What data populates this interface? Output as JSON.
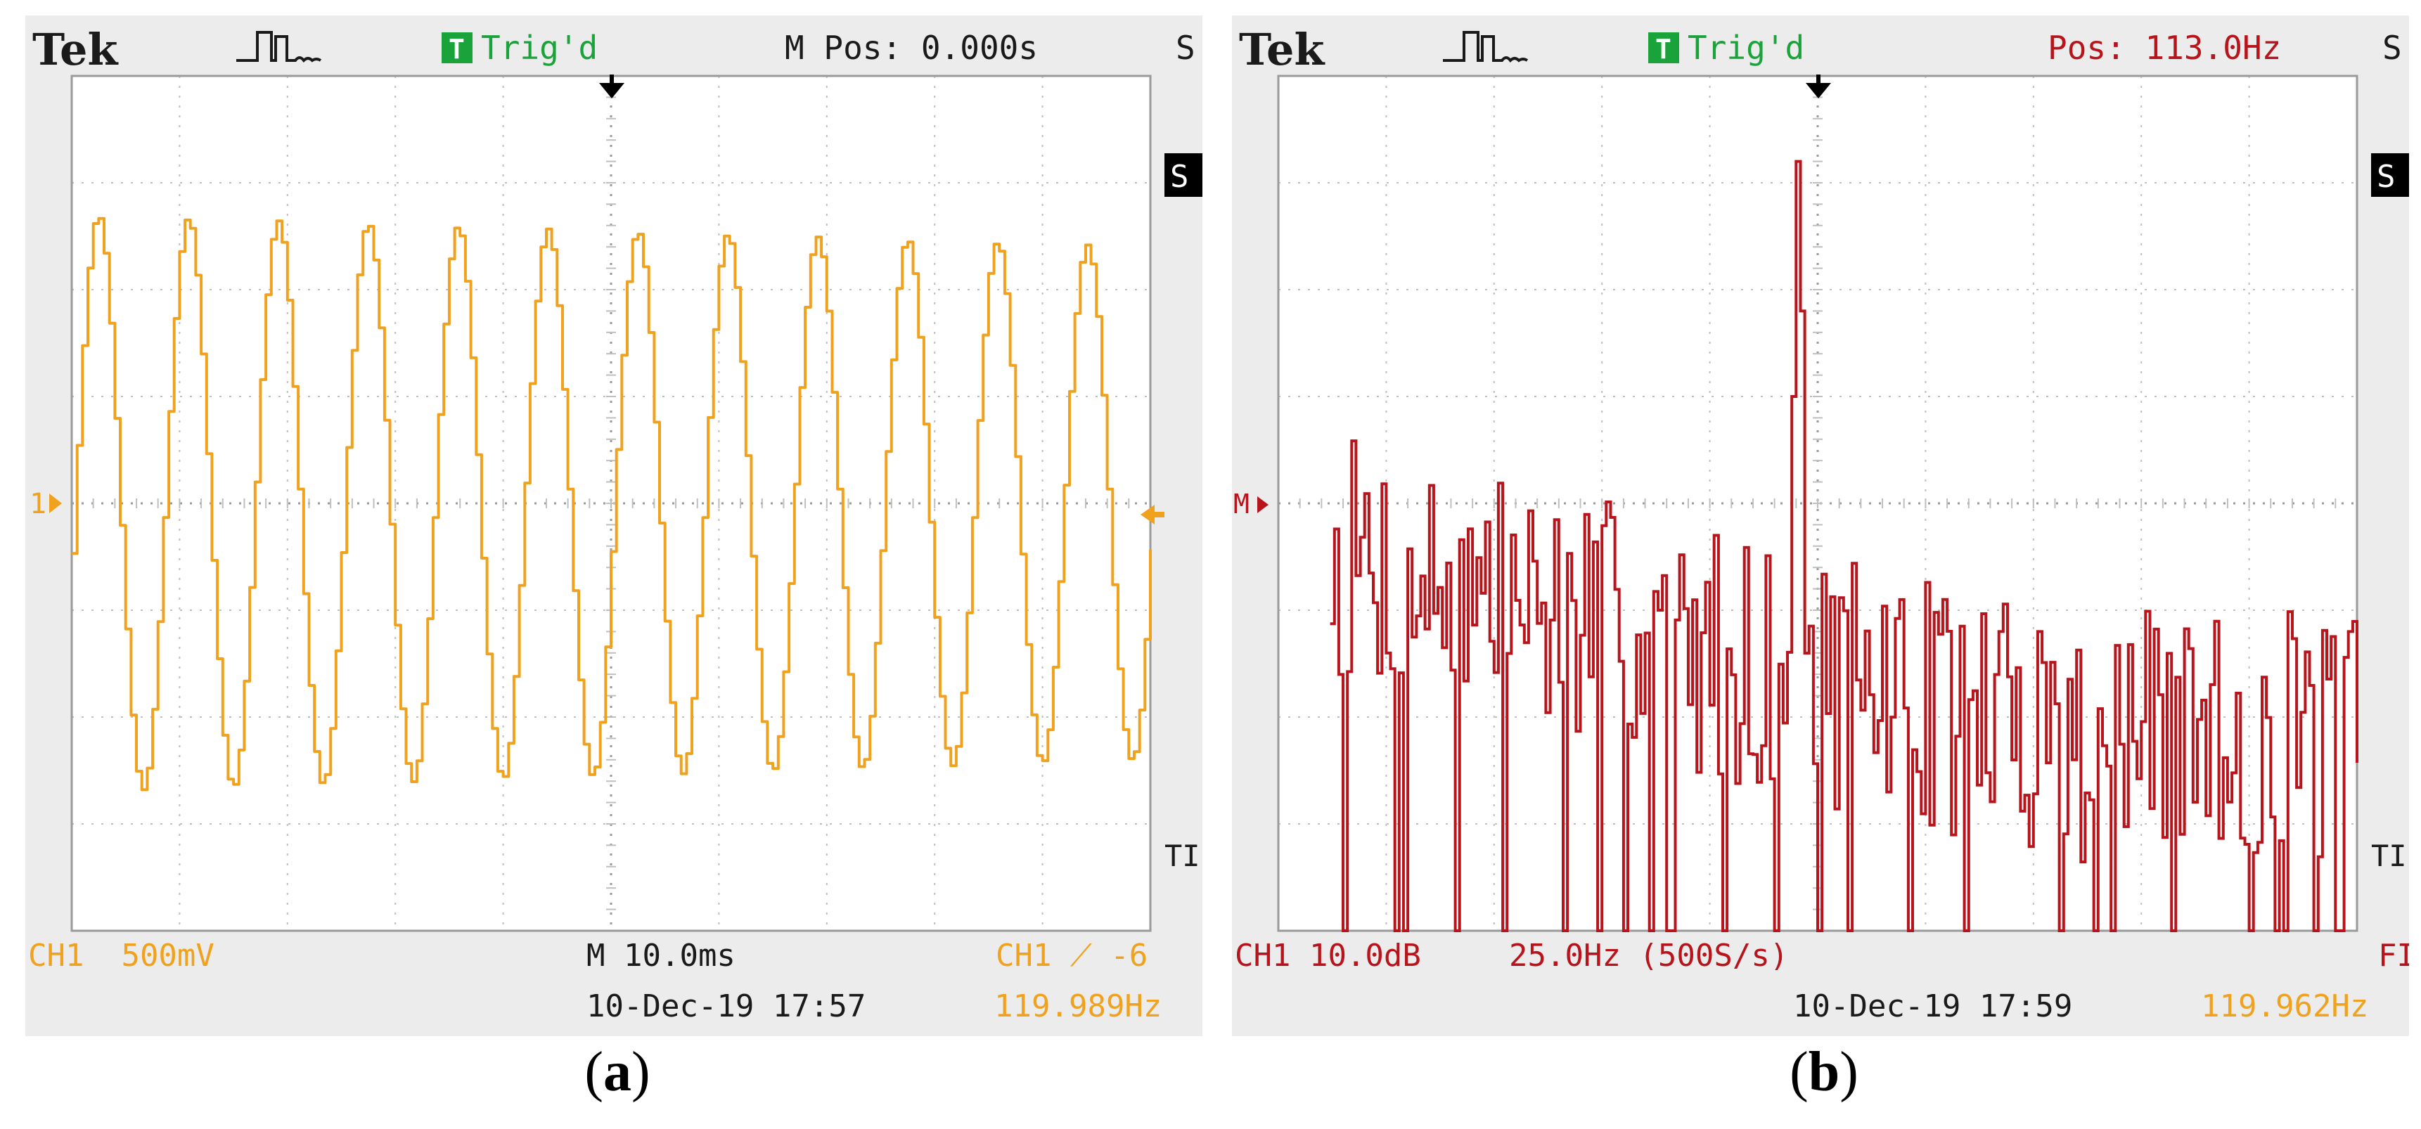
{
  "colors": {
    "ch1": "#f0a21f",
    "math": "#b8141c",
    "trig_green": "#1aa33a",
    "grid": "#bfbfbf",
    "screen_bg": "#ececec",
    "plot_bg": "#ffffff"
  },
  "icons": [
    "pulse-icon",
    "trigger-t-icon",
    "trigger-position-arrow-icon",
    "channel-ground-marker-icon",
    "rising-edge-icon"
  ],
  "panels": [
    {
      "id": "a",
      "brand": "Tek",
      "trig_badge": "T",
      "trig_status": "Trig'd",
      "position_readout": "M Pos: 0.000s",
      "right_cut_top": "S",
      "right_cut_badge": "S",
      "right_cut_mid": "TI",
      "channel_marker": "1",
      "bottom_left": "CH1  500mV",
      "bottom_center": "M 10.0ms",
      "bottom_right": "CH1 ⟋ -6",
      "datetime": "10-Dec-19 17:57",
      "freq_readout": "119.989Hz",
      "caption": "a"
    },
    {
      "id": "b",
      "brand": "Tek",
      "trig_badge": "T",
      "trig_status": "Trig'd",
      "position_readout": "Pos: 113.0Hz",
      "right_cut_top": "S",
      "right_cut_badge": "S",
      "right_cut_mid": "TI",
      "channel_marker": "M",
      "bottom_left": "CH1 10.0dB",
      "bottom_center": "25.0Hz (500S/s)",
      "bottom_right": "FI",
      "datetime": "10-Dec-19 17:59",
      "freq_readout": "119.962Hz",
      "caption": "b"
    }
  ],
  "chart_data": [
    {
      "type": "line",
      "title": "",
      "xlabel": "",
      "ylabel": "",
      "x_unit": "ms",
      "y_unit": "V",
      "xlim": [
        -50,
        50
      ],
      "ylim": [
        -2,
        2
      ],
      "grid": true,
      "series": [
        {
          "style": "stepped sinusoid",
          "frequency_hz": 119.989,
          "amplitude_v": 1.35,
          "amplitude_end_v": 1.2,
          "offset_v": 0.0,
          "phase_at_start_deg": -10,
          "step_ms": 0.5
        }
      ]
    },
    {
      "type": "line",
      "title": "",
      "xlabel": "",
      "ylabel": "",
      "x_unit": "Hz",
      "y_unit": "dB",
      "xlim": [
        0,
        250
      ],
      "ylim": [
        -40,
        40
      ],
      "grid": true,
      "series": [
        {
          "style": "FFT spectrum",
          "bin_hz": 1.0,
          "noise_floor_db_start": -5,
          "noise_floor_db_end": -22,
          "noise_spread_db": 12,
          "peaks": [
            {
              "x": 120,
              "y": 32
            },
            {
              "x": 121,
              "y": 18
            },
            {
              "x": 119,
              "y": 10
            },
            {
              "x": 88,
              "y": -10
            },
            {
              "x": 154,
              "y": -9
            },
            {
              "x": 176,
              "y": -12
            },
            {
              "x": 248,
              "y": -12
            }
          ]
        }
      ]
    }
  ]
}
